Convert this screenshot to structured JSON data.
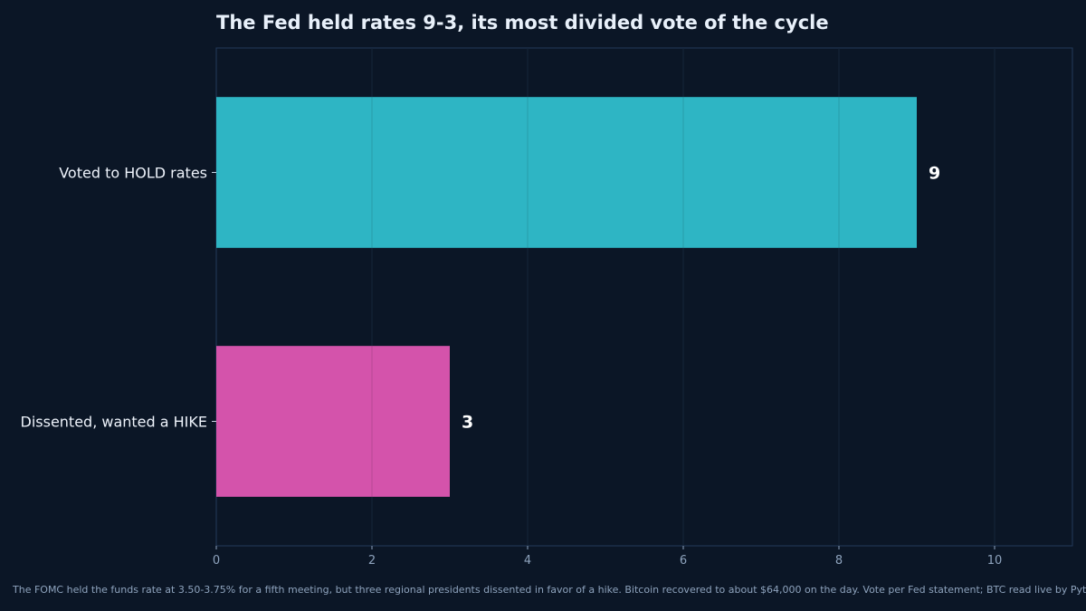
{
  "chart_data": {
    "type": "bar",
    "orientation": "horizontal",
    "title": "The Fed held rates 9-3, its most divided vote of the cycle",
    "categories": [
      "Voted to HOLD rates",
      "Dissented, wanted a HIKE"
    ],
    "values": [
      9,
      3
    ],
    "data_labels": [
      "9",
      "3"
    ],
    "colors": [
      "#2eb5c4",
      "#d453ab"
    ],
    "xlim": [
      0,
      11
    ],
    "xticks": [
      0,
      2,
      4,
      6,
      8,
      10
    ],
    "xtick_labels": [
      "0",
      "2",
      "4",
      "6",
      "8",
      "10"
    ],
    "xlabel": "",
    "ylabel": "",
    "grid": true,
    "legend": "none"
  },
  "caption": "The FOMC held the funds rate at 3.50-3.75% for a fifth meeting, but three regional presidents dissented in favor of a hike. Bitcoin recovered to about $64,000 on the day. Vote per Fed statement; BTC read live by Pyth.",
  "colors": {
    "background": "#0b1626",
    "axes_frame": "#23395a",
    "grid": "#1a2b42",
    "title": "#e8f0fa",
    "tick_text": "#8ea3bd"
  }
}
